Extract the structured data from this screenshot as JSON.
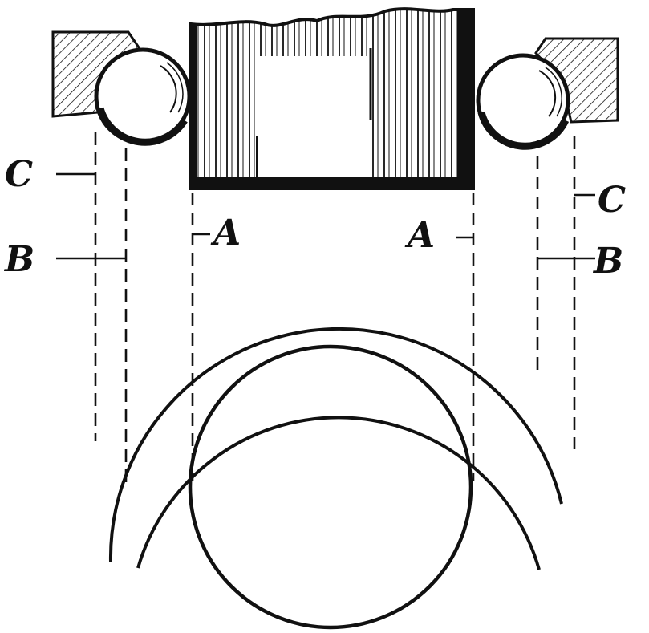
{
  "labels": {
    "a_left": "A",
    "a_right": "A",
    "b_left": "B",
    "b_right": "B",
    "c_left": "C",
    "c_right": "C"
  },
  "colors": {
    "ink": "#111111",
    "paper": "#ffffff"
  }
}
